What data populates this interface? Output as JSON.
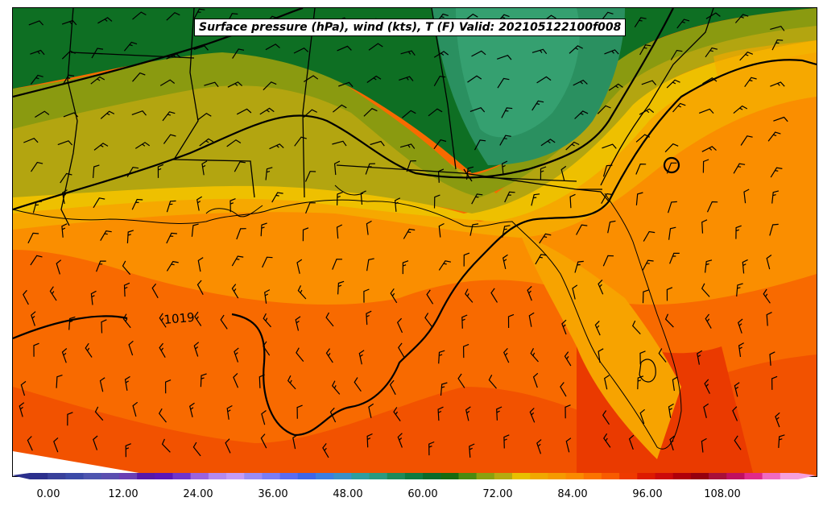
{
  "title": "Surface pressure (hPa), wind (kts), T (F) Valid: 202105122100f008",
  "isobar_label": "1019",
  "colorbar": {
    "ticks": [
      "0.00",
      "12.00",
      "24.00",
      "36.00",
      "48.00",
      "60.00",
      "72.00",
      "84.00",
      "96.00",
      "108.00"
    ],
    "colors": [
      "#2b2f8c",
      "#38409a",
      "#3b4aa7",
      "#4d55b0",
      "#5a4fb0",
      "#6a3fb4",
      "#5619a9",
      "#5a17b8",
      "#6f35cc",
      "#9a63e0",
      "#b38af0",
      "#c39cf8",
      "#9a8cf5",
      "#7a7df5",
      "#5b6cf2",
      "#3f66e8",
      "#3d7ee0",
      "#3a90c8",
      "#2e9ea0",
      "#2a9a80",
      "#1d8a5a",
      "#0e7a40",
      "#0a6a2a",
      "#156a10",
      "#4a8a10",
      "#8aa010",
      "#b5aa10",
      "#e8c000",
      "#f0a800",
      "#f59a00",
      "#fa8a00",
      "#fb7400",
      "#f85c00",
      "#ee3a00",
      "#dd1a00",
      "#cc0a0a",
      "#b0000a",
      "#95000f",
      "#a8103a",
      "#c01060",
      "#e02a8a",
      "#f06ac0",
      "#f5a0dc"
    ]
  }
}
